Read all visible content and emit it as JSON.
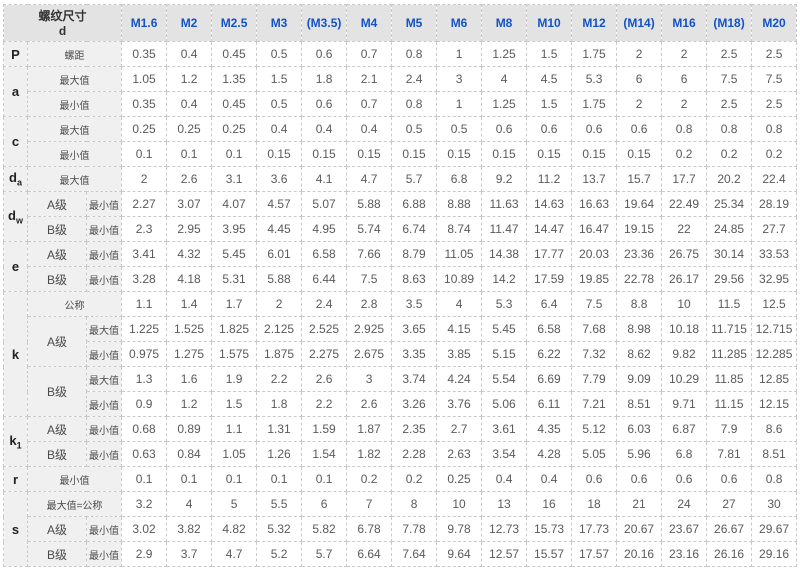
{
  "table": {
    "corner": {
      "title": "螺纹尺寸",
      "symbol": "d"
    },
    "columns": [
      "M1.6",
      "M2",
      "M2.5",
      "M3",
      "(M3.5)",
      "M4",
      "M5",
      "M6",
      "M8",
      "M10",
      "M12",
      "(M14)",
      "M16",
      "(M18)",
      "M20"
    ],
    "colors": {
      "header_bg": "#e3e3e3",
      "header_text": "#1353c4",
      "label_bg": "#f0f0f0",
      "value_text": "#5a5a5a",
      "border": "#c9c9c9"
    },
    "labels": {
      "nominal": "公称",
      "max": "最大值",
      "min": "最小值",
      "max_equals_nominal": "最大值=公称",
      "grade_a": "A级",
      "grade_b": "B级",
      "pitch": "螺距"
    },
    "groups": [
      {
        "symbol": "P",
        "sub": "",
        "rows": [
          {
            "label": "螺距",
            "wide": true,
            "values": [
              "0.35",
              "0.4",
              "0.45",
              "0.5",
              "0.6",
              "0.7",
              "0.8",
              "1",
              "1.25",
              "1.5",
              "1.75",
              "2",
              "2",
              "2.5",
              "2.5"
            ]
          }
        ]
      },
      {
        "symbol": "a",
        "sub": "",
        "rows": [
          {
            "label": "最大值",
            "wide": true,
            "values": [
              "1.05",
              "1.2",
              "1.35",
              "1.5",
              "1.8",
              "2.1",
              "2.4",
              "3",
              "4",
              "4.5",
              "5.3",
              "6",
              "6",
              "7.5",
              "7.5"
            ]
          },
          {
            "label": "最小值",
            "wide": true,
            "values": [
              "0.35",
              "0.4",
              "0.45",
              "0.5",
              "0.6",
              "0.7",
              "0.8",
              "1",
              "1.25",
              "1.5",
              "1.75",
              "2",
              "2",
              "2.5",
              "2.5"
            ]
          }
        ]
      },
      {
        "symbol": "c",
        "sub": "",
        "rows": [
          {
            "label": "最大值",
            "wide": true,
            "values": [
              "0.25",
              "0.25",
              "0.25",
              "0.4",
              "0.4",
              "0.4",
              "0.5",
              "0.5",
              "0.6",
              "0.6",
              "0.6",
              "0.6",
              "0.8",
              "0.8",
              "0.8"
            ]
          },
          {
            "label": "最小值",
            "wide": true,
            "values": [
              "0.1",
              "0.1",
              "0.1",
              "0.15",
              "0.15",
              "0.15",
              "0.15",
              "0.15",
              "0.15",
              "0.15",
              "0.15",
              "0.15",
              "0.2",
              "0.2",
              "0.2"
            ]
          }
        ]
      },
      {
        "symbol": "d",
        "sub": "a",
        "rows": [
          {
            "label": "最大值",
            "wide": true,
            "values": [
              "2",
              "2.6",
              "3.1",
              "3.6",
              "4.1",
              "4.7",
              "5.7",
              "6.8",
              "9.2",
              "11.2",
              "13.7",
              "15.7",
              "17.7",
              "20.2",
              "22.4"
            ]
          }
        ]
      },
      {
        "symbol": "d",
        "sub": "w",
        "rows": [
          {
            "label": "A级",
            "grade": true,
            "sublabel": "最小值",
            "values": [
              "2.27",
              "3.07",
              "4.07",
              "4.57",
              "5.07",
              "5.88",
              "6.88",
              "8.88",
              "11.63",
              "14.63",
              "16.63",
              "19.64",
              "22.49",
              "25.34",
              "28.19"
            ]
          },
          {
            "label": "B级",
            "grade": true,
            "sublabel": "最小值",
            "values": [
              "2.3",
              "2.95",
              "3.95",
              "4.45",
              "4.95",
              "5.74",
              "6.74",
              "8.74",
              "11.47",
              "14.47",
              "16.47",
              "19.15",
              "22",
              "24.85",
              "27.7"
            ]
          }
        ]
      },
      {
        "symbol": "e",
        "sub": "",
        "rows": [
          {
            "label": "A级",
            "grade": true,
            "sublabel": "最小值",
            "values": [
              "3.41",
              "4.32",
              "5.45",
              "6.01",
              "6.58",
              "7.66",
              "8.79",
              "11.05",
              "14.38",
              "17.77",
              "20.03",
              "23.36",
              "26.75",
              "30.14",
              "33.53"
            ]
          },
          {
            "label": "B级",
            "grade": true,
            "sublabel": "最小值",
            "values": [
              "3.28",
              "4.18",
              "5.31",
              "5.88",
              "6.44",
              "7.5",
              "8.63",
              "10.89",
              "14.2",
              "17.59",
              "19.85",
              "22.78",
              "26.17",
              "29.56",
              "32.95"
            ]
          }
        ]
      },
      {
        "symbol": "k",
        "sub": "",
        "rows": [
          {
            "label": "公称",
            "wide": true,
            "values": [
              "1.1",
              "1.4",
              "1.7",
              "2",
              "2.4",
              "2.8",
              "3.5",
              "4",
              "5.3",
              "6.4",
              "7.5",
              "8.8",
              "10",
              "11.5",
              "12.5"
            ]
          },
          {
            "label": "A级",
            "grade": true,
            "rowspan": 2,
            "sublabel": "最大值",
            "values": [
              "1.225",
              "1.525",
              "1.825",
              "2.125",
              "2.525",
              "2.925",
              "3.65",
              "4.15",
              "5.45",
              "6.58",
              "7.68",
              "8.98",
              "10.18",
              "11.715",
              "12.715"
            ]
          },
          {
            "sublabel": "最小值",
            "values": [
              "0.975",
              "1.275",
              "1.575",
              "1.875",
              "2.275",
              "2.675",
              "3.35",
              "3.85",
              "5.15",
              "6.22",
              "7.32",
              "8.62",
              "9.82",
              "11.285",
              "12.285"
            ]
          },
          {
            "label": "B级",
            "grade": true,
            "rowspan": 2,
            "sublabel": "最大值",
            "values": [
              "1.3",
              "1.6",
              "1.9",
              "2.2",
              "2.6",
              "3",
              "3.74",
              "4.24",
              "5.54",
              "6.69",
              "7.79",
              "9.09",
              "10.29",
              "11.85",
              "12.85"
            ]
          },
          {
            "sublabel": "最小值",
            "values": [
              "0.9",
              "1.2",
              "1.5",
              "1.8",
              "2.2",
              "2.6",
              "3.26",
              "3.76",
              "5.06",
              "6.11",
              "7.21",
              "8.51",
              "9.71",
              "11.15",
              "12.15"
            ]
          }
        ]
      },
      {
        "symbol": "k",
        "sub": "1",
        "rows": [
          {
            "label": "A级",
            "grade": true,
            "sublabel": "最小值",
            "values": [
              "0.68",
              "0.89",
              "1.1",
              "1.31",
              "1.59",
              "1.87",
              "2.35",
              "2.7",
              "3.61",
              "4.35",
              "5.12",
              "6.03",
              "6.87",
              "7.9",
              "8.6"
            ]
          },
          {
            "label": "B级",
            "grade": true,
            "sublabel": "最小值",
            "values": [
              "0.63",
              "0.84",
              "1.05",
              "1.26",
              "1.54",
              "1.82",
              "2.28",
              "2.63",
              "3.54",
              "4.28",
              "5.05",
              "5.96",
              "6.8",
              "7.81",
              "8.51"
            ]
          }
        ]
      },
      {
        "symbol": "r",
        "sub": "",
        "rows": [
          {
            "label": "最小值",
            "wide": true,
            "values": [
              "0.1",
              "0.1",
              "0.1",
              "0.1",
              "0.1",
              "0.2",
              "0.2",
              "0.25",
              "0.4",
              "0.4",
              "0.6",
              "0.6",
              "0.6",
              "0.6",
              "0.8"
            ]
          }
        ]
      },
      {
        "symbol": "s",
        "sub": "",
        "rows": [
          {
            "label": "最大值=公称",
            "wide": true,
            "values": [
              "3.2",
              "4",
              "5",
              "5.5",
              "6",
              "7",
              "8",
              "10",
              "13",
              "16",
              "18",
              "21",
              "24",
              "27",
              "30"
            ]
          },
          {
            "label": "A级",
            "grade": true,
            "sublabel": "最小值",
            "values": [
              "3.02",
              "3.82",
              "4.82",
              "5.32",
              "5.82",
              "6.78",
              "7.78",
              "9.78",
              "12.73",
              "15.73",
              "17.73",
              "20.67",
              "23.67",
              "26.67",
              "29.67"
            ]
          },
          {
            "label": "B级",
            "grade": true,
            "sublabel": "最小值",
            "values": [
              "2.9",
              "3.7",
              "4.7",
              "5.2",
              "5.7",
              "6.64",
              "7.64",
              "9.64",
              "12.57",
              "15.57",
              "17.57",
              "20.16",
              "23.16",
              "26.16",
              "29.16"
            ]
          }
        ]
      }
    ]
  }
}
